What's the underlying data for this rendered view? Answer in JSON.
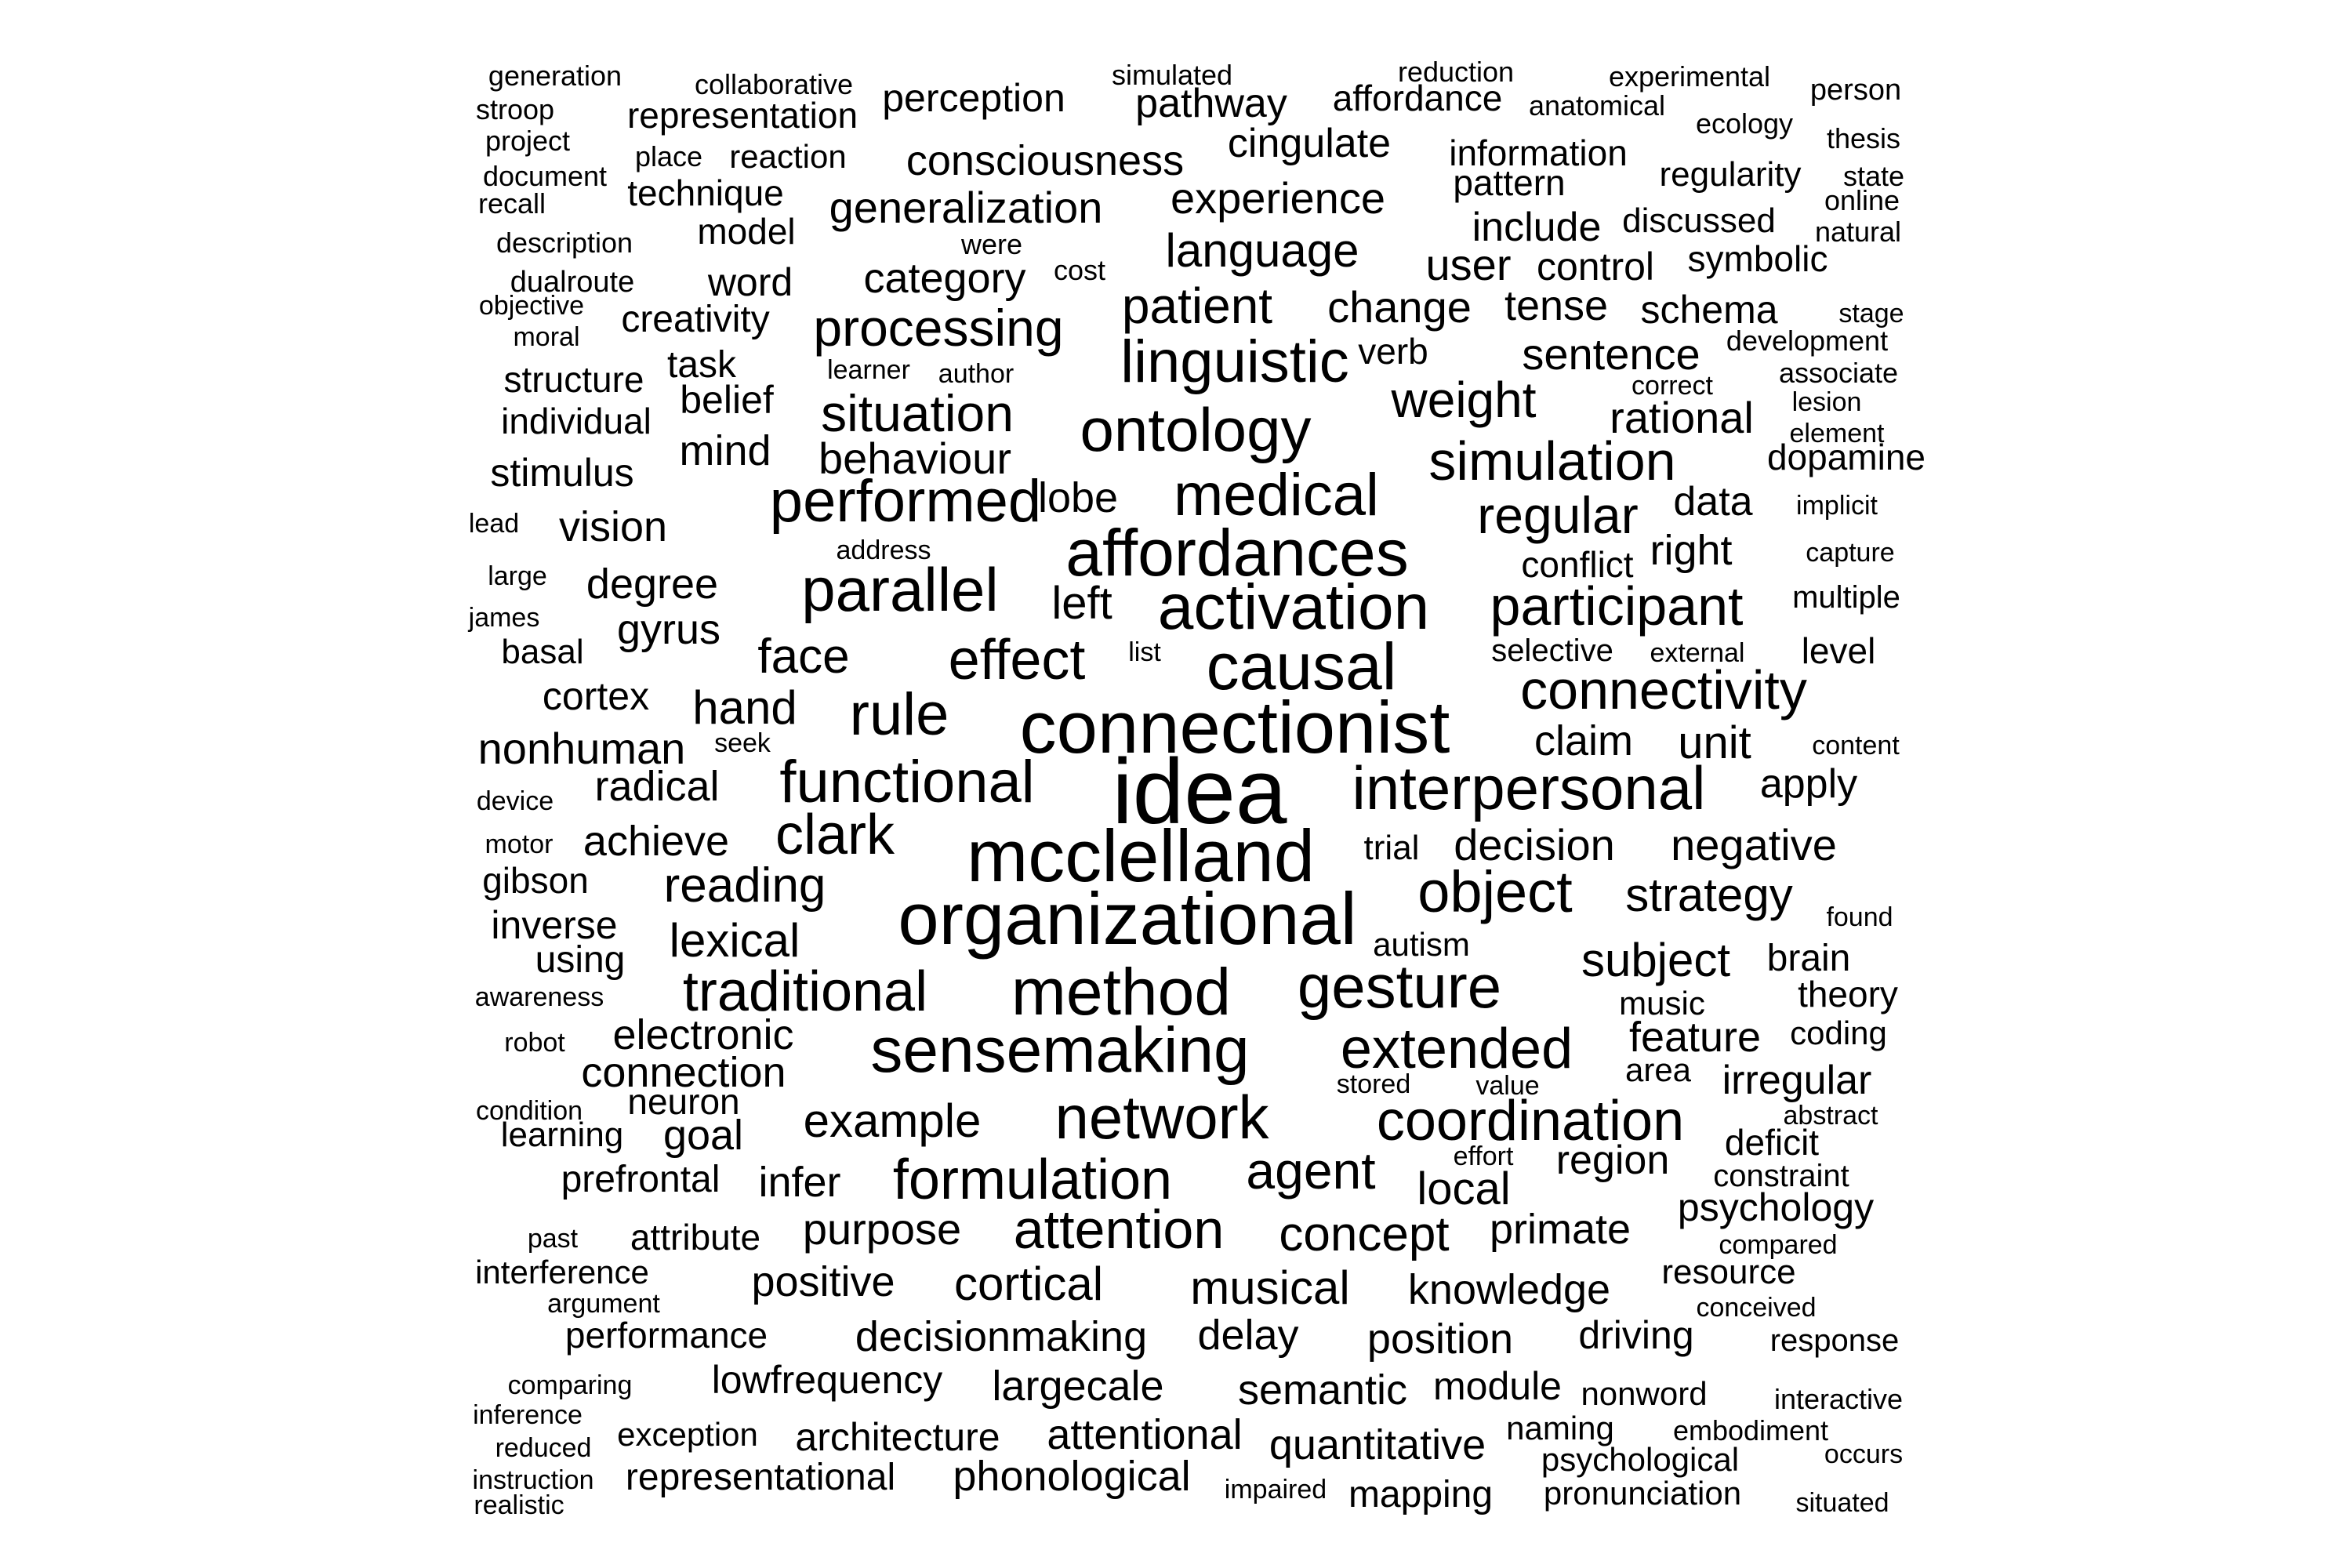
{
  "words": [
    {
      "text": "idea",
      "weight": 10
    },
    {
      "text": "connectionist",
      "weight": 9
    },
    {
      "text": "mcclelland",
      "weight": 9
    },
    {
      "text": "organizational",
      "weight": 9
    },
    {
      "text": "method",
      "weight": 8
    },
    {
      "text": "sensemaking",
      "weight": 8
    },
    {
      "text": "affordances",
      "weight": 8
    },
    {
      "text": "causal",
      "weight": 8
    },
    {
      "text": "activation",
      "weight": 8
    },
    {
      "text": "interpersonal",
      "weight": 8
    },
    {
      "text": "ontology",
      "weight": 8
    },
    {
      "text": "parallel",
      "weight": 8
    },
    {
      "text": "network",
      "weight": 8
    },
    {
      "text": "gesture",
      "weight": 8
    },
    {
      "text": "functional",
      "weight": 7
    },
    {
      "text": "medical",
      "weight": 7
    },
    {
      "text": "linguistic",
      "weight": 7
    },
    {
      "text": "performed",
      "weight": 7
    },
    {
      "text": "rule",
      "weight": 7
    },
    {
      "text": "object",
      "weight": 7
    },
    {
      "text": "extended",
      "weight": 7
    },
    {
      "text": "coordination",
      "weight": 7
    },
    {
      "text": "formulation",
      "weight": 7
    },
    {
      "text": "traditional",
      "weight": 7
    },
    {
      "text": "clark",
      "weight": 7
    },
    {
      "text": "effect",
      "weight": 7
    },
    {
      "text": "connectivity",
      "weight": 7
    },
    {
      "text": "participant",
      "weight": 7
    },
    {
      "text": "simulation",
      "weight": 7
    },
    {
      "text": "attention",
      "weight": 7
    },
    {
      "text": "agent",
      "weight": 6
    },
    {
      "text": "processing",
      "weight": 6
    },
    {
      "text": "situation",
      "weight": 6
    },
    {
      "text": "regular",
      "weight": 6
    },
    {
      "text": "weight",
      "weight": 6
    },
    {
      "text": "patient",
      "weight": 6
    },
    {
      "text": "face",
      "weight": 6
    },
    {
      "text": "reading",
      "weight": 6
    },
    {
      "text": "example",
      "weight": 6
    },
    {
      "text": "subject",
      "weight": 6
    },
    {
      "text": "concept",
      "weight": 6
    },
    {
      "text": "musical",
      "weight": 6
    },
    {
      "text": "cortical",
      "weight": 6
    },
    {
      "text": "language",
      "weight": 6
    },
    {
      "text": "strategy",
      "weight": 6
    },
    {
      "text": "hand",
      "weight": 6
    },
    {
      "text": "lexical",
      "weight": 6
    },
    {
      "text": "purpose",
      "weight": 6
    },
    {
      "text": "generalization",
      "weight": 6
    },
    {
      "text": "change",
      "weight": 6
    },
    {
      "text": "experience",
      "weight": 6
    },
    {
      "text": "consciousness",
      "weight": 5
    },
    {
      "text": "decisionmaking",
      "weight": 5
    },
    {
      "text": "position",
      "weight": 5
    },
    {
      "text": "semantic",
      "weight": 5
    },
    {
      "text": "largecale",
      "weight": 5
    },
    {
      "text": "quantitative",
      "weight": 5
    },
    {
      "text": "phonological",
      "weight": 5
    },
    {
      "text": "attentional",
      "weight": 5
    },
    {
      "text": "knowledge",
      "weight": 5
    },
    {
      "text": "positive",
      "weight": 5
    },
    {
      "text": "primate",
      "weight": 5
    },
    {
      "text": "local",
      "weight": 5
    },
    {
      "text": "decision",
      "weight": 5
    },
    {
      "text": "negative",
      "weight": 5
    },
    {
      "text": "behaviour",
      "weight": 5
    },
    {
      "text": "sentence",
      "weight": 5
    },
    {
      "text": "rational",
      "weight": 5
    },
    {
      "text": "cingulate",
      "weight": 5
    },
    {
      "text": "pathway",
      "weight": 5
    },
    {
      "text": "perception",
      "weight": 5
    },
    {
      "text": "category",
      "weight": 5
    },
    {
      "text": "delay",
      "weight": 5
    },
    {
      "text": "lobe",
      "weight": 5
    },
    {
      "text": "left",
      "weight": 5
    },
    {
      "text": "degree",
      "weight": 5
    },
    {
      "text": "gyrus",
      "weight": 5
    },
    {
      "text": "radical",
      "weight": 5
    },
    {
      "text": "right",
      "weight": 5
    },
    {
      "text": "tense",
      "weight": 5
    },
    {
      "text": "lowfrequency",
      "weight": 5
    },
    {
      "text": "architecture",
      "weight": 5
    },
    {
      "text": "representational",
      "weight": 5
    },
    {
      "text": "feature",
      "weight": 5
    },
    {
      "text": "irregular",
      "weight": 5
    },
    {
      "text": "region",
      "weight": 5
    },
    {
      "text": "psychology",
      "weight": 5
    },
    {
      "text": "infer",
      "weight": 5
    },
    {
      "text": "mind",
      "weight": 5
    },
    {
      "text": "claim",
      "weight": 5
    },
    {
      "text": "unit",
      "weight": 5
    },
    {
      "text": "achieve",
      "weight": 5
    },
    {
      "text": "electronic",
      "weight": 5
    },
    {
      "text": "connection",
      "weight": 5
    },
    {
      "text": "goal",
      "weight": 5
    },
    {
      "text": "vision",
      "weight": 5
    },
    {
      "text": "nonhuman",
      "weight": 5
    },
    {
      "text": "include",
      "weight": 5
    },
    {
      "text": "user",
      "weight": 5
    },
    {
      "text": "schema",
      "weight": 5
    },
    {
      "text": "control",
      "weight": 5
    },
    {
      "text": "driving",
      "weight": 5
    },
    {
      "text": "module",
      "weight": 5
    },
    {
      "text": "mapping",
      "weight": 5
    },
    {
      "text": "data",
      "weight": 5
    },
    {
      "text": "apply",
      "weight": 5
    },
    {
      "text": "brain",
      "weight": 5
    },
    {
      "text": "stimulus",
      "weight": 5
    },
    {
      "text": "word",
      "weight": 5
    },
    {
      "text": "creativity",
      "weight": 5
    },
    {
      "text": "belief",
      "weight": 5
    },
    {
      "text": "cortex",
      "weight": 5
    },
    {
      "text": "inverse",
      "weight": 5
    },
    {
      "text": "dopamine",
      "weight": 4
    },
    {
      "text": "conflict",
      "weight": 4
    },
    {
      "text": "deficit",
      "weight": 4
    },
    {
      "text": "theory",
      "weight": 4
    },
    {
      "text": "level",
      "weight": 4
    },
    {
      "text": "information",
      "weight": 4
    },
    {
      "text": "pattern",
      "weight": 4
    },
    {
      "text": "symbolic",
      "weight": 4
    },
    {
      "text": "discussed",
      "weight": 4
    },
    {
      "text": "regularity",
      "weight": 4
    },
    {
      "text": "affordance",
      "weight": 4
    },
    {
      "text": "representation",
      "weight": 4
    },
    {
      "text": "technique",
      "weight": 4
    },
    {
      "text": "model",
      "weight": 4
    },
    {
      "text": "reaction",
      "weight": 4
    },
    {
      "text": "structure",
      "weight": 4
    },
    {
      "text": "individual",
      "weight": 4
    },
    {
      "text": "task",
      "weight": 4
    },
    {
      "text": "verb",
      "weight": 4
    },
    {
      "text": "gibson",
      "weight": 4
    },
    {
      "text": "using",
      "weight": 4
    },
    {
      "text": "basal",
      "weight": 4
    },
    {
      "text": "neuron",
      "weight": 4
    },
    {
      "text": "learning",
      "weight": 4
    },
    {
      "text": "prefrontal",
      "weight": 4
    },
    {
      "text": "attribute",
      "weight": 4
    },
    {
      "text": "interference",
      "weight": 4
    },
    {
      "text": "performance",
      "weight": 4
    },
    {
      "text": "exception",
      "weight": 4
    },
    {
      "text": "resource",
      "weight": 4
    },
    {
      "text": "coding",
      "weight": 4
    },
    {
      "text": "autism",
      "weight": 4
    },
    {
      "text": "music",
      "weight": 4
    },
    {
      "text": "area",
      "weight": 4
    },
    {
      "text": "trial",
      "weight": 4
    },
    {
      "text": "selective",
      "weight": 4
    },
    {
      "text": "naming",
      "weight": 4
    },
    {
      "text": "psychological",
      "weight": 4
    },
    {
      "text": "pronunciation",
      "weight": 4
    },
    {
      "text": "nonword",
      "weight": 4
    },
    {
      "text": "constraint",
      "weight": 4
    },
    {
      "text": "response",
      "weight": 4
    },
    {
      "text": "multiple",
      "weight": 4
    },
    {
      "text": "development",
      "weight": 3
    },
    {
      "text": "associate",
      "weight": 3
    },
    {
      "text": "generation",
      "weight": 3
    },
    {
      "text": "collaborative",
      "weight": 3
    },
    {
      "text": "simulated",
      "weight": 3
    },
    {
      "text": "reduction",
      "weight": 3
    },
    {
      "text": "experimental",
      "weight": 3
    },
    {
      "text": "anatomical",
      "weight": 3
    },
    {
      "text": "person",
      "weight": 3
    },
    {
      "text": "ecology",
      "weight": 3
    },
    {
      "text": "thesis",
      "weight": 3
    },
    {
      "text": "state",
      "weight": 3
    },
    {
      "text": "online",
      "weight": 3
    },
    {
      "text": "natural",
      "weight": 3
    },
    {
      "text": "stroop",
      "weight": 3
    },
    {
      "text": "project",
      "weight": 3
    },
    {
      "text": "document",
      "weight": 3
    },
    {
      "text": "recall",
      "weight": 3
    },
    {
      "text": "place",
      "weight": 3
    },
    {
      "text": "description",
      "weight": 3
    },
    {
      "text": "were",
      "weight": 3
    },
    {
      "text": "cost",
      "weight": 3
    },
    {
      "text": "dualroute",
      "weight": 3
    },
    {
      "text": "objective",
      "weight": 3
    },
    {
      "text": "moral",
      "weight": 3
    },
    {
      "text": "learner",
      "weight": 3
    },
    {
      "text": "author",
      "weight": 3
    },
    {
      "text": "stage",
      "weight": 3
    },
    {
      "text": "correct",
      "weight": 3
    },
    {
      "text": "lesion",
      "weight": 3
    },
    {
      "text": "element",
      "weight": 3
    },
    {
      "text": "implicit",
      "weight": 3
    },
    {
      "text": "capture",
      "weight": 3
    },
    {
      "text": "lead",
      "weight": 3
    },
    {
      "text": "address",
      "weight": 3
    },
    {
      "text": "large",
      "weight": 3
    },
    {
      "text": "james",
      "weight": 3
    },
    {
      "text": "list",
      "weight": 3
    },
    {
      "text": "external",
      "weight": 3
    },
    {
      "text": "seek",
      "weight": 3
    },
    {
      "text": "content",
      "weight": 3
    },
    {
      "text": "device",
      "weight": 3
    },
    {
      "text": "motor",
      "weight": 3
    },
    {
      "text": "found",
      "weight": 3
    },
    {
      "text": "awareness",
      "weight": 3
    },
    {
      "text": "robot",
      "weight": 3
    },
    {
      "text": "stored",
      "weight": 3
    },
    {
      "text": "value",
      "weight": 3
    },
    {
      "text": "condition",
      "weight": 3
    },
    {
      "text": "abstract",
      "weight": 3
    },
    {
      "text": "effort",
      "weight": 3
    },
    {
      "text": "past",
      "weight": 3
    },
    {
      "text": "compared",
      "weight": 3
    },
    {
      "text": "argument",
      "weight": 3
    },
    {
      "text": "conceived",
      "weight": 3
    },
    {
      "text": "comparing",
      "weight": 3
    },
    {
      "text": "inference",
      "weight": 3
    },
    {
      "text": "interactive",
      "weight": 3
    },
    {
      "text": "embodiment",
      "weight": 3
    },
    {
      "text": "reduced",
      "weight": 3
    },
    {
      "text": "occurs",
      "weight": 3
    },
    {
      "text": "instruction",
      "weight": 3
    },
    {
      "text": "realistic",
      "weight": 3
    },
    {
      "text": "impaired",
      "weight": 3
    },
    {
      "text": "situated",
      "weight": 3
    }
  ]
}
